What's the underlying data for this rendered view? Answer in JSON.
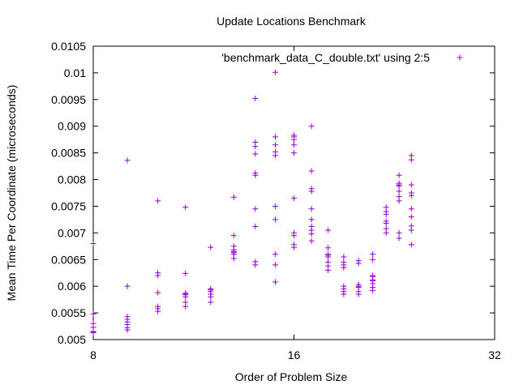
{
  "chart_data": {
    "type": "scatter",
    "title": "Update Locations Benchmark",
    "xlabel": "Order of Problem Size",
    "ylabel": "Mean Time Per Coordinate (microseconds)",
    "x_scale": "log2",
    "xlim": [
      8,
      32
    ],
    "ylim": [
      0.005,
      0.0105
    ],
    "x_ticks": [
      8,
      16,
      32
    ],
    "x_tick_labels": [
      "8",
      "16",
      "32"
    ],
    "y_ticks": [
      0.005,
      0.0055,
      0.006,
      0.0065,
      0.007,
      0.0075,
      0.008,
      0.0085,
      0.009,
      0.0095,
      0.01,
      0.0105
    ],
    "y_tick_labels": [
      "0.005",
      "0.0055",
      "0.006",
      "0.0065",
      "0.007",
      "0.0075",
      "0.008",
      "0.0085",
      "0.009",
      "0.0095",
      "0.01",
      "0.0105"
    ],
    "grid": false,
    "legend_position": "top-right",
    "marker_color": "#9400d3",
    "series": [
      {
        "name": "'benchmark_data_C_double.txt' using 2:5",
        "marker": "plus",
        "points": [
          [
            8,
            0.00513
          ],
          [
            8,
            0.00514
          ],
          [
            8,
            0.00515
          ],
          [
            8,
            0.00523
          ],
          [
            8,
            0.0053
          ],
          [
            8,
            0.00548
          ],
          [
            8,
            0.0068
          ],
          [
            9,
            0.00518
          ],
          [
            9,
            0.00522
          ],
          [
            9,
            0.00528
          ],
          [
            9,
            0.00533
          ],
          [
            9,
            0.00538
          ],
          [
            9,
            0.00543
          ],
          [
            9,
            0.006
          ],
          [
            9,
            0.00836
          ],
          [
            10,
            0.00553
          ],
          [
            10,
            0.00558
          ],
          [
            10,
            0.00562
          ],
          [
            10,
            0.00588
          ],
          [
            10,
            0.0062
          ],
          [
            10,
            0.00625
          ],
          [
            10,
            0.0076
          ],
          [
            11,
            0.00562
          ],
          [
            11,
            0.0057
          ],
          [
            11,
            0.0058
          ],
          [
            11,
            0.00584
          ],
          [
            11,
            0.00585
          ],
          [
            11,
            0.00587
          ],
          [
            11,
            0.00624
          ],
          [
            11,
            0.00748
          ],
          [
            12,
            0.0057
          ],
          [
            12,
            0.0058
          ],
          [
            12,
            0.00585
          ],
          [
            12,
            0.0059
          ],
          [
            12,
            0.00593
          ],
          [
            12,
            0.00595
          ],
          [
            12,
            0.00673
          ],
          [
            13,
            0.00652
          ],
          [
            13,
            0.0066
          ],
          [
            13,
            0.00663
          ],
          [
            13,
            0.00665
          ],
          [
            13,
            0.00668
          ],
          [
            13,
            0.00675
          ],
          [
            13,
            0.00695
          ],
          [
            13,
            0.00767
          ],
          [
            14,
            0.0064
          ],
          [
            14,
            0.00646
          ],
          [
            14,
            0.00712
          ],
          [
            14,
            0.00745
          ],
          [
            14,
            0.00808
          ],
          [
            14,
            0.00812
          ],
          [
            14,
            0.00848
          ],
          [
            14,
            0.00862
          ],
          [
            14,
            0.0087
          ],
          [
            14,
            0.00952
          ],
          [
            15,
            0.00608
          ],
          [
            15,
            0.0064
          ],
          [
            15,
            0.0066
          ],
          [
            15,
            0.00725
          ],
          [
            15,
            0.0075
          ],
          [
            15,
            0.00845
          ],
          [
            15,
            0.00852
          ],
          [
            15,
            0.00865
          ],
          [
            15,
            0.0088
          ],
          [
            15,
            0.01001
          ],
          [
            16,
            0.00673
          ],
          [
            16,
            0.00678
          ],
          [
            16,
            0.00695
          ],
          [
            16,
            0.007
          ],
          [
            16,
            0.00765
          ],
          [
            16,
            0.0085
          ],
          [
            16,
            0.00865
          ],
          [
            16,
            0.00875
          ],
          [
            16,
            0.0088
          ],
          [
            16,
            0.00883
          ],
          [
            17,
            0.00685
          ],
          [
            17,
            0.00698
          ],
          [
            17,
            0.00705
          ],
          [
            17,
            0.00712
          ],
          [
            17,
            0.00725
          ],
          [
            17,
            0.00745
          ],
          [
            17,
            0.00778
          ],
          [
            17,
            0.00783
          ],
          [
            17,
            0.00816
          ],
          [
            17,
            0.009
          ],
          [
            18,
            0.0063
          ],
          [
            18,
            0.00638
          ],
          [
            18,
            0.00645
          ],
          [
            18,
            0.00655
          ],
          [
            18,
            0.00658
          ],
          [
            18,
            0.0066
          ],
          [
            18,
            0.00672
          ],
          [
            18,
            0.00705
          ],
          [
            19,
            0.00585
          ],
          [
            19,
            0.0059
          ],
          [
            19,
            0.00595
          ],
          [
            19,
            0.006
          ],
          [
            19,
            0.00635
          ],
          [
            19,
            0.0064
          ],
          [
            19,
            0.00645
          ],
          [
            19,
            0.00655
          ],
          [
            20,
            0.00585
          ],
          [
            20,
            0.0059
          ],
          [
            20,
            0.00598
          ],
          [
            20,
            0.006
          ],
          [
            20,
            0.00603
          ],
          [
            20,
            0.00643
          ],
          [
            20,
            0.00648
          ],
          [
            21,
            0.00592
          ],
          [
            21,
            0.00598
          ],
          [
            21,
            0.00605
          ],
          [
            21,
            0.0061
          ],
          [
            21,
            0.00612
          ],
          [
            21,
            0.00618
          ],
          [
            21,
            0.0062
          ],
          [
            21,
            0.0065
          ],
          [
            21,
            0.0066
          ],
          [
            22,
            0.007
          ],
          [
            22,
            0.00708
          ],
          [
            22,
            0.00718
          ],
          [
            22,
            0.00722
          ],
          [
            22,
            0.00735
          ],
          [
            22,
            0.0074
          ],
          [
            22,
            0.00748
          ],
          [
            23,
            0.0069
          ],
          [
            23,
            0.007
          ],
          [
            23,
            0.0076
          ],
          [
            23,
            0.00768
          ],
          [
            23,
            0.00778
          ],
          [
            23,
            0.00788
          ],
          [
            23,
            0.0079
          ],
          [
            23,
            0.00793
          ],
          [
            23,
            0.00808
          ],
          [
            24,
            0.00678
          ],
          [
            24,
            0.00705
          ],
          [
            24,
            0.00713
          ],
          [
            24,
            0.0073
          ],
          [
            24,
            0.00745
          ],
          [
            24,
            0.0077
          ],
          [
            24,
            0.00775
          ],
          [
            24,
            0.0079
          ],
          [
            24,
            0.00837
          ],
          [
            24,
            0.00845
          ]
        ]
      }
    ]
  }
}
